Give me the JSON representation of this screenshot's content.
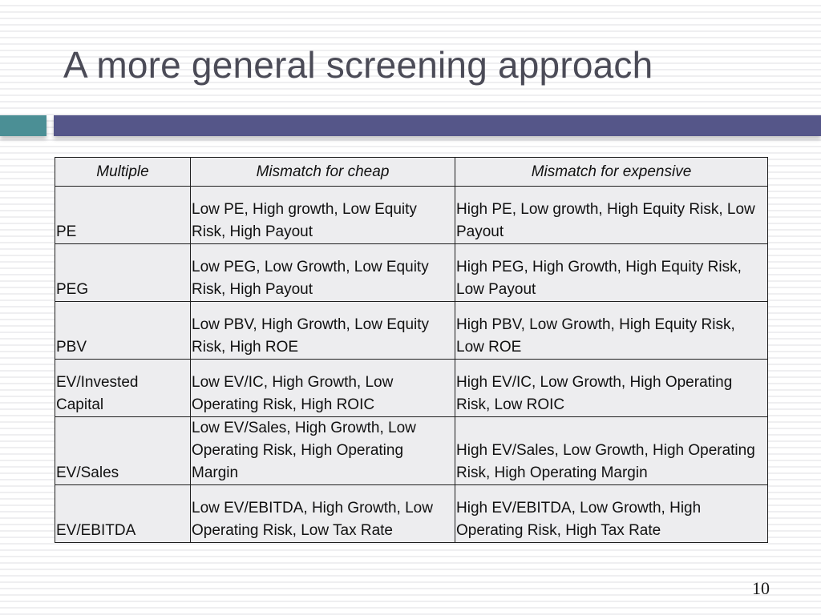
{
  "slide": {
    "title": "A more general screening approach",
    "page_number": "10"
  },
  "table": {
    "headers": [
      "Multiple",
      "Mismatch for cheap",
      "Mismatch for expensive"
    ],
    "rows": [
      {
        "multiple": "PE",
        "cheap": "Low PE, High growth, Low Equity Risk, High Payout",
        "expensive": "High PE, Low growth, High Equity Risk, Low Payout"
      },
      {
        "multiple": "PEG",
        "cheap": "Low PEG, Low Growth, Low Equity Risk, High Payout",
        "expensive": "High PEG, High Growth, High Equity Risk, Low Payout"
      },
      {
        "multiple": "PBV",
        "cheap": "Low PBV, High Growth, Low Equity Risk, High ROE",
        "expensive": "High PBV, Low Growth, High Equity Risk, Low ROE"
      },
      {
        "multiple": "EV/Invested Capital",
        "cheap": "Low EV/IC, High Growth, Low Operating Risk, High ROIC",
        "expensive": "High EV/IC, Low Growth, High Operating Risk, Low ROIC"
      },
      {
        "multiple": "EV/Sales",
        "cheap": "Low EV/Sales, High Growth, Low Operating Risk, High Operating Margin",
        "expensive": "High EV/Sales, Low Growth, High Operating Risk, High Operating Margin"
      },
      {
        "multiple": "EV/EBITDA",
        "cheap": "Low EV/EBITDA, High Growth, Low Operating Risk, Low Tax Rate",
        "expensive": "High EV/EBITDA, Low Growth, High Operating Risk, High Tax Rate"
      }
    ]
  },
  "colors": {
    "accent_teal": "#4b8f95",
    "accent_purple": "#555689",
    "title_text": "#4b4b57",
    "table_fill": "#ededef"
  }
}
